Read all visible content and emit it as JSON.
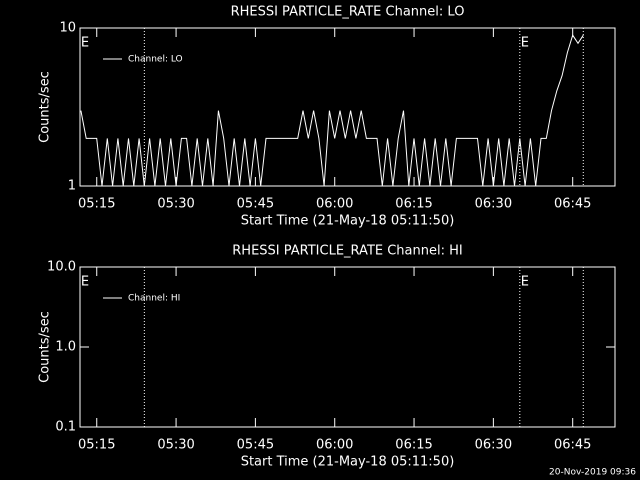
{
  "chart_data": [
    {
      "type": "line",
      "title": "RHESSI PARTICLE_RATE Channel: LO",
      "xlabel": "Start Time (21-May-18 05:11:50)",
      "ylabel": "Counts/sec",
      "log_y": true,
      "ylim": [
        1,
        10
      ],
      "yticks": [
        1,
        10
      ],
      "xlim": [
        "05:11:50",
        "06:53:00"
      ],
      "xticks": [
        "05:15",
        "05:30",
        "05:45",
        "06:00",
        "06:15",
        "06:30",
        "06:45"
      ],
      "legend": "upper left",
      "event_lines": [
        "05:24",
        "06:35",
        "06:47"
      ],
      "annotations": [
        {
          "x": "05:11:50",
          "text": "E"
        },
        {
          "x": "06:35",
          "text": "E"
        }
      ],
      "x": [
        "05:12",
        "05:13",
        "05:14",
        "05:15",
        "05:16",
        "05:17",
        "05:18",
        "05:19",
        "05:20",
        "05:21",
        "05:22",
        "05:23",
        "05:24",
        "05:25",
        "05:26",
        "05:27",
        "05:28",
        "05:29",
        "05:30",
        "05:31",
        "05:32",
        "05:33",
        "05:34",
        "05:35",
        "05:36",
        "05:37",
        "05:38",
        "05:39",
        "05:40",
        "05:41",
        "05:42",
        "05:43",
        "05:44",
        "05:45",
        "05:46",
        "05:47",
        "05:48",
        "05:49",
        "05:50",
        "05:51",
        "05:52",
        "05:53",
        "05:54",
        "05:55",
        "05:56",
        "05:57",
        "05:58",
        "05:59",
        "06:00",
        "06:01",
        "06:02",
        "06:03",
        "06:04",
        "06:05",
        "06:06",
        "06:07",
        "06:08",
        "06:09",
        "06:10",
        "06:11",
        "06:12",
        "06:13",
        "06:14",
        "06:15",
        "06:16",
        "06:17",
        "06:18",
        "06:19",
        "06:20",
        "06:21",
        "06:22",
        "06:23",
        "06:24",
        "06:25",
        "06:26",
        "06:27",
        "06:28",
        "06:29",
        "06:30",
        "06:31",
        "06:32",
        "06:33",
        "06:34",
        "06:35",
        "06:36",
        "06:37",
        "06:38",
        "06:39",
        "06:40",
        "06:41",
        "06:42",
        "06:43",
        "06:44",
        "06:45",
        "06:46",
        "06:47"
      ],
      "series": [
        {
          "name": "Channel: LO",
          "color": "#ffffff",
          "values": [
            3,
            2,
            2,
            2,
            1,
            2,
            1,
            2,
            1,
            2,
            1,
            2,
            1,
            2,
            1,
            2,
            1,
            2,
            1,
            2,
            2,
            1,
            2,
            1,
            2,
            1,
            3,
            2,
            1,
            2,
            1,
            2,
            1,
            2,
            1,
            2,
            2,
            2,
            2,
            2,
            2,
            2,
            3,
            2,
            3,
            2,
            1,
            3,
            2,
            3,
            2,
            3,
            2,
            3,
            2,
            2,
            2,
            1,
            2,
            1,
            2,
            3,
            1,
            2,
            1,
            2,
            1,
            2,
            1,
            2,
            1,
            2,
            2,
            2,
            2,
            2,
            1,
            2,
            1,
            2,
            1,
            2,
            1,
            2,
            1,
            2,
            1,
            2,
            2,
            3,
            4,
            5,
            7,
            9,
            8,
            9
          ]
        }
      ]
    },
    {
      "type": "line",
      "title": "RHESSI PARTICLE_RATE Channel: HI",
      "xlabel": "Start Time (21-May-18 05:11:50)",
      "ylabel": "Counts/sec",
      "log_y": true,
      "ylim": [
        0.1,
        10
      ],
      "yticks": [
        {
          "value": 10,
          "label": "10.0"
        },
        {
          "value": 1,
          "label": "1.0"
        },
        0.1
      ],
      "xlim": [
        "05:11:50",
        "06:53:00"
      ],
      "xticks": [
        "05:15",
        "05:30",
        "05:45",
        "06:00",
        "06:15",
        "06:30",
        "06:45"
      ],
      "legend": "upper left",
      "event_lines": [
        "05:24",
        "06:35",
        "06:47"
      ],
      "annotations": [
        {
          "x": "05:11:50",
          "text": "E"
        },
        {
          "x": "06:35",
          "text": "E"
        }
      ],
      "x": [],
      "series": [
        {
          "name": "Channel: HI",
          "color": "#ffffff",
          "values": []
        }
      ]
    }
  ],
  "footer": "20-Nov-2019 09:36"
}
